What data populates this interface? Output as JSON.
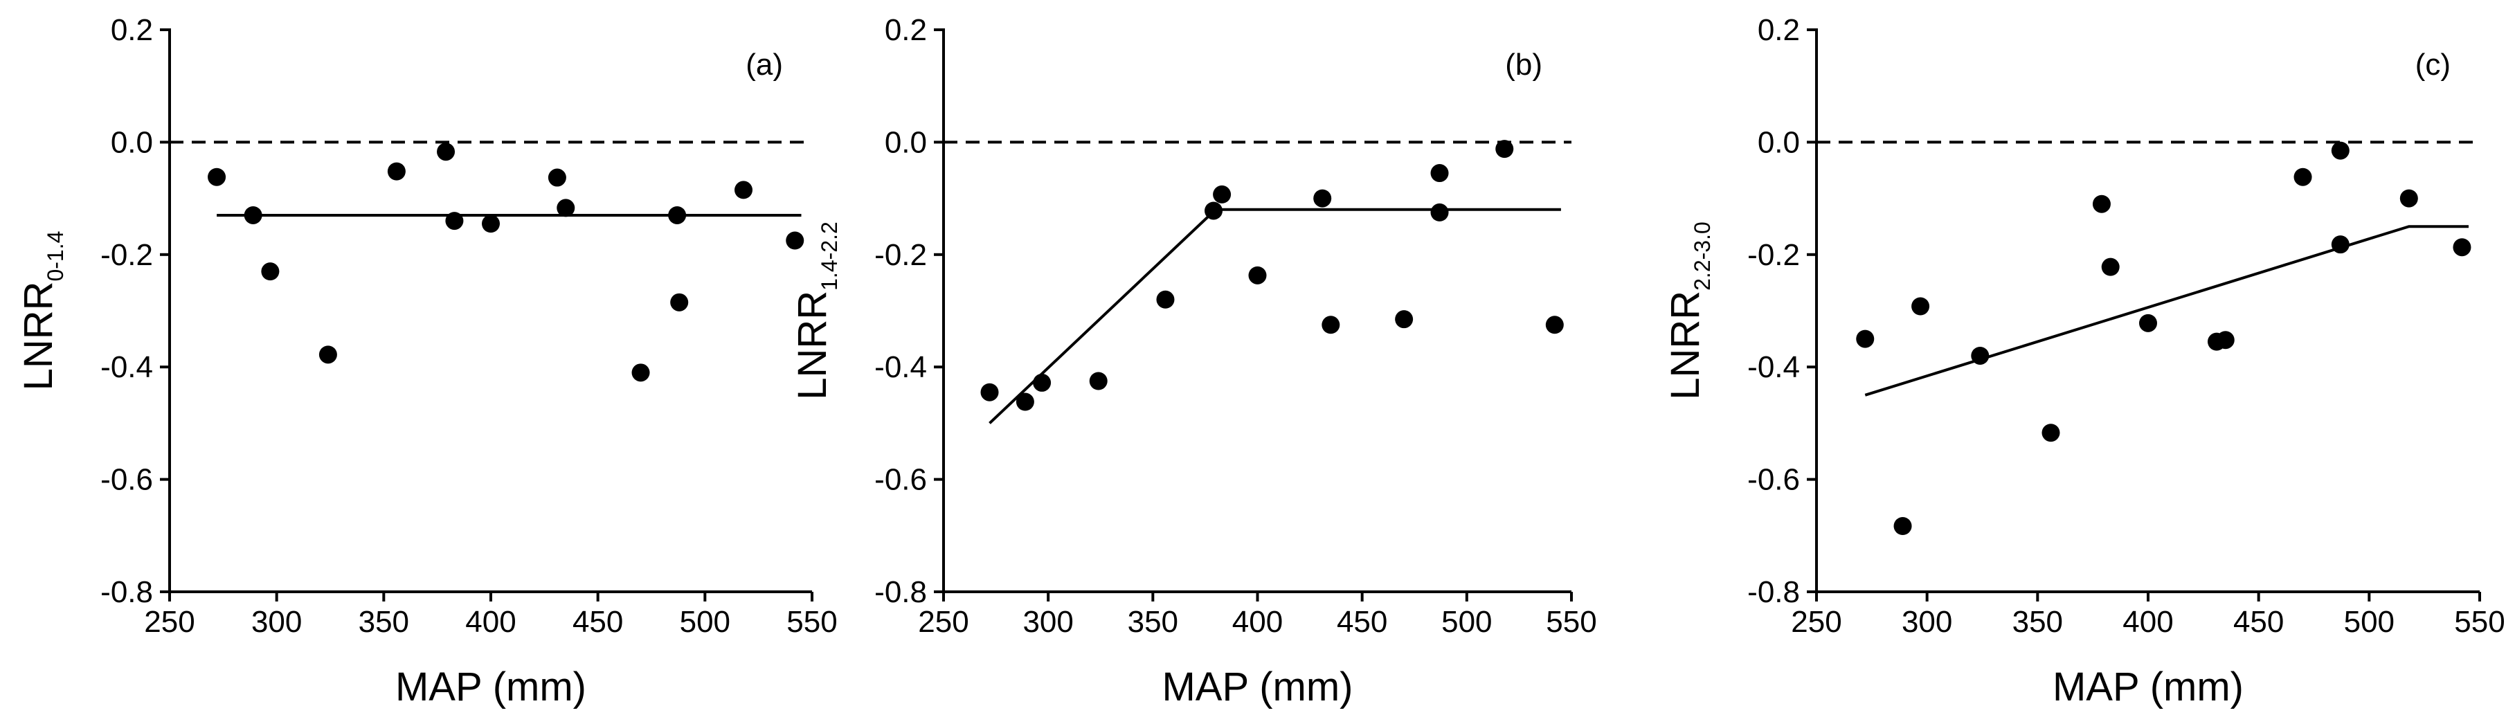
{
  "chart_data": [
    {
      "type": "scatter",
      "panel_label": "(a)",
      "xlabel": "MAP (mm)",
      "ylabel_main": "LNRR",
      "ylabel_sub": "0-1.4",
      "xlim": [
        250,
        550
      ],
      "ylim": [
        -0.8,
        0.2
      ],
      "x_ticks": [
        250,
        300,
        350,
        400,
        450,
        500,
        550
      ],
      "y_ticks": [
        -0.8,
        -0.6,
        -0.4,
        -0.2,
        0.0,
        0.2
      ],
      "x_tick_labels": [
        "250",
        "300",
        "350",
        "400",
        "450",
        "500",
        "550"
      ],
      "y_tick_labels": [
        "-0.8",
        "-0.6",
        "-0.4",
        "-0.2",
        "0.0",
        "0.2"
      ],
      "reference_line": {
        "y": 0.0,
        "style": "dashed"
      },
      "points": [
        {
          "x": 272,
          "y": -0.062
        },
        {
          "x": 289,
          "y": -0.13
        },
        {
          "x": 297,
          "y": -0.23
        },
        {
          "x": 324,
          "y": -0.378
        },
        {
          "x": 356,
          "y": -0.052
        },
        {
          "x": 379,
          "y": -0.017
        },
        {
          "x": 383,
          "y": -0.14
        },
        {
          "x": 400,
          "y": -0.145
        },
        {
          "x": 431,
          "y": -0.063
        },
        {
          "x": 435,
          "y": -0.117
        },
        {
          "x": 470,
          "y": -0.41
        },
        {
          "x": 487,
          "y": -0.13
        },
        {
          "x": 488,
          "y": -0.285
        },
        {
          "x": 518,
          "y": -0.085
        },
        {
          "x": 542,
          "y": -0.175
        }
      ],
      "fit_line": [
        {
          "x": 272,
          "y": -0.13
        },
        {
          "x": 545,
          "y": -0.13
        }
      ]
    },
    {
      "type": "scatter",
      "panel_label": "(b)",
      "xlabel": "MAP (mm)",
      "ylabel_main": "LNRR",
      "ylabel_sub": "1.4-2.2",
      "xlim": [
        250,
        550
      ],
      "ylim": [
        -0.8,
        0.2
      ],
      "x_ticks": [
        250,
        300,
        350,
        400,
        450,
        500,
        550
      ],
      "y_ticks": [
        -0.8,
        -0.6,
        -0.4,
        -0.2,
        0.0,
        0.2
      ],
      "x_tick_labels": [
        "250",
        "300",
        "350",
        "400",
        "450",
        "500",
        "550"
      ],
      "y_tick_labels": [
        "-0.8",
        "-0.6",
        "-0.4",
        "-0.2",
        "0.0",
        "0.2"
      ],
      "reference_line": {
        "y": 0.0,
        "style": "dashed"
      },
      "points": [
        {
          "x": 272,
          "y": -0.445
        },
        {
          "x": 289,
          "y": -0.462
        },
        {
          "x": 297,
          "y": -0.428
        },
        {
          "x": 324,
          "y": -0.425
        },
        {
          "x": 356,
          "y": -0.28
        },
        {
          "x": 379,
          "y": -0.122
        },
        {
          "x": 383,
          "y": -0.093
        },
        {
          "x": 400,
          "y": -0.237
        },
        {
          "x": 431,
          "y": -0.1
        },
        {
          "x": 435,
          "y": -0.325
        },
        {
          "x": 470,
          "y": -0.315
        },
        {
          "x": 487,
          "y": -0.055
        },
        {
          "x": 487,
          "y": -0.125
        },
        {
          "x": 518,
          "y": -0.012
        },
        {
          "x": 542,
          "y": -0.325
        }
      ],
      "fit_line": [
        {
          "x": 272,
          "y": -0.5
        },
        {
          "x": 380,
          "y": -0.12
        },
        {
          "x": 545,
          "y": -0.12
        }
      ]
    },
    {
      "type": "scatter",
      "panel_label": "(c)",
      "xlabel": "MAP (mm)",
      "ylabel_main": "LNRR",
      "ylabel_sub": "2.2-3.0",
      "xlim": [
        250,
        550
      ],
      "ylim": [
        -0.8,
        0.2
      ],
      "x_ticks": [
        250,
        300,
        350,
        400,
        450,
        500,
        550
      ],
      "y_ticks": [
        -0.8,
        -0.6,
        -0.4,
        -0.2,
        0.0,
        0.2
      ],
      "x_tick_labels": [
        "250",
        "300",
        "350",
        "400",
        "450",
        "500",
        "550"
      ],
      "y_tick_labels": [
        "-0.8",
        "-0.6",
        "-0.4",
        "-0.2",
        "0.0",
        "0.2"
      ],
      "reference_line": {
        "y": 0.0,
        "style": "dashed"
      },
      "points": [
        {
          "x": 272,
          "y": -0.35
        },
        {
          "x": 289,
          "y": -0.683
        },
        {
          "x": 297,
          "y": -0.292
        },
        {
          "x": 324,
          "y": -0.38
        },
        {
          "x": 356,
          "y": -0.517
        },
        {
          "x": 379,
          "y": -0.11
        },
        {
          "x": 383,
          "y": -0.222
        },
        {
          "x": 400,
          "y": -0.322
        },
        {
          "x": 431,
          "y": -0.355
        },
        {
          "x": 435,
          "y": -0.352
        },
        {
          "x": 470,
          "y": -0.062
        },
        {
          "x": 487,
          "y": -0.015
        },
        {
          "x": 487,
          "y": -0.182
        },
        {
          "x": 518,
          "y": -0.1
        },
        {
          "x": 542,
          "y": -0.187
        }
      ],
      "fit_line": [
        {
          "x": 272,
          "y": -0.45
        },
        {
          "x": 518,
          "y": -0.15
        },
        {
          "x": 545,
          "y": -0.15
        }
      ]
    }
  ]
}
